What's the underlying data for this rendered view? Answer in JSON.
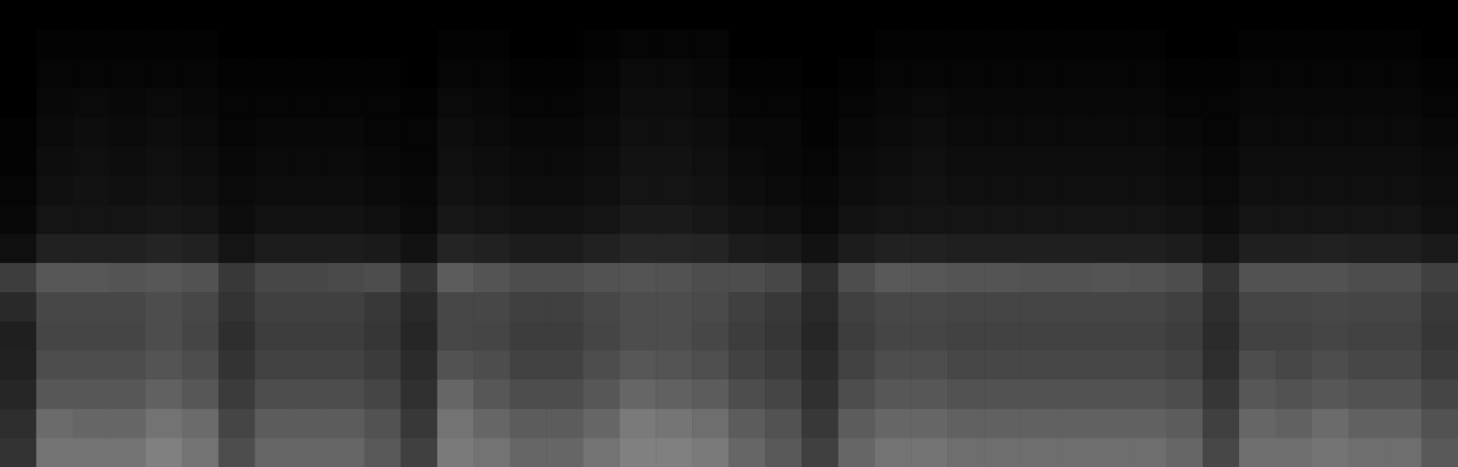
{
  "chart_data": {
    "type": "heatmap",
    "x": [
      0,
      1,
      2,
      3,
      4,
      5,
      6,
      7,
      8,
      9,
      10,
      11,
      12,
      13,
      14,
      15,
      16,
      17,
      18,
      19,
      20,
      21,
      22,
      23,
      24,
      25,
      26,
      27,
      28,
      29,
      30,
      31,
      32,
      33,
      34,
      35,
      36,
      37,
      38,
      39
    ],
    "y": [
      0,
      1,
      2,
      3,
      4,
      5,
      6,
      7,
      8,
      9,
      10,
      11,
      12,
      13,
      14,
      15
    ],
    "zlim": [
      0,
      1
    ],
    "tick_labels": false,
    "grid": false,
    "cells": [
      [
        0.2,
        0.45,
        0.45,
        0.45,
        0.5,
        0.45,
        0.3,
        0.4,
        0.4,
        0.4,
        0.35,
        0.25,
        0.48,
        0.45,
        0.4,
        0.4,
        0.45,
        0.5,
        0.5,
        0.48,
        0.4,
        0.35,
        0.25,
        0.4,
        0.45,
        0.45,
        0.43,
        0.43,
        0.43,
        0.43,
        0.43,
        0.43,
        0.4,
        0.28,
        0.43,
        0.43,
        0.45,
        0.43,
        0.43,
        0.35
      ],
      [
        0.18,
        0.42,
        0.4,
        0.4,
        0.45,
        0.42,
        0.27,
        0.36,
        0.36,
        0.36,
        0.32,
        0.22,
        0.45,
        0.4,
        0.36,
        0.36,
        0.4,
        0.48,
        0.46,
        0.43,
        0.36,
        0.32,
        0.22,
        0.36,
        0.4,
        0.4,
        0.38,
        0.38,
        0.38,
        0.38,
        0.38,
        0.38,
        0.36,
        0.25,
        0.4,
        0.38,
        0.42,
        0.38,
        0.38,
        0.32
      ],
      [
        0.15,
        0.34,
        0.34,
        0.34,
        0.38,
        0.34,
        0.23,
        0.3,
        0.3,
        0.3,
        0.27,
        0.19,
        0.4,
        0.34,
        0.3,
        0.3,
        0.34,
        0.4,
        0.38,
        0.36,
        0.3,
        0.27,
        0.19,
        0.3,
        0.34,
        0.34,
        0.32,
        0.32,
        0.32,
        0.32,
        0.32,
        0.32,
        0.3,
        0.21,
        0.34,
        0.32,
        0.34,
        0.32,
        0.32,
        0.27
      ],
      [
        0.13,
        0.3,
        0.3,
        0.3,
        0.33,
        0.3,
        0.2,
        0.26,
        0.26,
        0.26,
        0.23,
        0.17,
        0.32,
        0.3,
        0.26,
        0.26,
        0.3,
        0.34,
        0.33,
        0.31,
        0.26,
        0.23,
        0.17,
        0.26,
        0.3,
        0.3,
        0.28,
        0.28,
        0.28,
        0.28,
        0.28,
        0.28,
        0.26,
        0.18,
        0.3,
        0.28,
        0.3,
        0.28,
        0.28,
        0.23
      ],
      [
        0.12,
        0.27,
        0.27,
        0.27,
        0.3,
        0.27,
        0.18,
        0.24,
        0.24,
        0.24,
        0.21,
        0.15,
        0.28,
        0.27,
        0.24,
        0.24,
        0.27,
        0.3,
        0.3,
        0.28,
        0.24,
        0.21,
        0.15,
        0.24,
        0.27,
        0.27,
        0.26,
        0.26,
        0.26,
        0.26,
        0.26,
        0.26,
        0.24,
        0.17,
        0.26,
        0.26,
        0.27,
        0.26,
        0.26,
        0.21
      ],
      [
        0.16,
        0.28,
        0.28,
        0.28,
        0.3,
        0.28,
        0.2,
        0.25,
        0.25,
        0.25,
        0.22,
        0.16,
        0.28,
        0.28,
        0.25,
        0.25,
        0.28,
        0.3,
        0.3,
        0.29,
        0.25,
        0.22,
        0.16,
        0.25,
        0.28,
        0.28,
        0.27,
        0.27,
        0.27,
        0.27,
        0.27,
        0.27,
        0.25,
        0.18,
        0.27,
        0.27,
        0.28,
        0.27,
        0.27,
        0.22
      ],
      [
        0.24,
        0.34,
        0.34,
        0.33,
        0.34,
        0.32,
        0.22,
        0.28,
        0.28,
        0.29,
        0.3,
        0.2,
        0.36,
        0.33,
        0.3,
        0.3,
        0.32,
        0.33,
        0.32,
        0.3,
        0.3,
        0.28,
        0.18,
        0.3,
        0.35,
        0.34,
        0.33,
        0.33,
        0.32,
        0.32,
        0.33,
        0.32,
        0.3,
        0.2,
        0.32,
        0.32,
        0.32,
        0.3,
        0.3,
        0.25
      ],
      [
        0.06,
        0.13,
        0.13,
        0.13,
        0.14,
        0.13,
        0.08,
        0.11,
        0.11,
        0.11,
        0.1,
        0.07,
        0.14,
        0.13,
        0.11,
        0.11,
        0.13,
        0.15,
        0.15,
        0.14,
        0.11,
        0.1,
        0.07,
        0.11,
        0.13,
        0.13,
        0.12,
        0.12,
        0.12,
        0.12,
        0.12,
        0.12,
        0.11,
        0.08,
        0.12,
        0.12,
        0.13,
        0.12,
        0.12,
        0.1
      ],
      [
        0.03,
        0.08,
        0.08,
        0.08,
        0.09,
        0.08,
        0.05,
        0.07,
        0.07,
        0.07,
        0.06,
        0.04,
        0.09,
        0.08,
        0.07,
        0.07,
        0.08,
        0.1,
        0.1,
        0.09,
        0.07,
        0.06,
        0.04,
        0.07,
        0.08,
        0.08,
        0.08,
        0.08,
        0.08,
        0.08,
        0.08,
        0.08,
        0.07,
        0.05,
        0.08,
        0.08,
        0.08,
        0.08,
        0.08,
        0.06
      ],
      [
        0.02,
        0.06,
        0.07,
        0.06,
        0.07,
        0.06,
        0.04,
        0.05,
        0.05,
        0.05,
        0.04,
        0.03,
        0.07,
        0.06,
        0.05,
        0.05,
        0.06,
        0.08,
        0.08,
        0.07,
        0.05,
        0.04,
        0.03,
        0.05,
        0.06,
        0.07,
        0.06,
        0.06,
        0.06,
        0.06,
        0.06,
        0.06,
        0.05,
        0.04,
        0.06,
        0.06,
        0.06,
        0.06,
        0.06,
        0.05
      ],
      [
        0.01,
        0.05,
        0.06,
        0.05,
        0.06,
        0.05,
        0.03,
        0.04,
        0.04,
        0.04,
        0.03,
        0.02,
        0.06,
        0.05,
        0.04,
        0.04,
        0.05,
        0.07,
        0.07,
        0.06,
        0.04,
        0.03,
        0.02,
        0.04,
        0.05,
        0.06,
        0.05,
        0.05,
        0.05,
        0.05,
        0.05,
        0.05,
        0.04,
        0.03,
        0.05,
        0.05,
        0.05,
        0.05,
        0.05,
        0.04
      ],
      [
        0.01,
        0.04,
        0.05,
        0.04,
        0.05,
        0.04,
        0.02,
        0.03,
        0.03,
        0.03,
        0.02,
        0.02,
        0.05,
        0.04,
        0.03,
        0.03,
        0.04,
        0.06,
        0.06,
        0.05,
        0.03,
        0.03,
        0.01,
        0.03,
        0.04,
        0.05,
        0.04,
        0.04,
        0.04,
        0.04,
        0.04,
        0.04,
        0.03,
        0.02,
        0.04,
        0.04,
        0.04,
        0.04,
        0.04,
        0.03
      ],
      [
        0,
        0.03,
        0.04,
        0.03,
        0.04,
        0.03,
        0.02,
        0.02,
        0.02,
        0.02,
        0.02,
        0.01,
        0.04,
        0.03,
        0.02,
        0.02,
        0.03,
        0.05,
        0.05,
        0.04,
        0.02,
        0.02,
        0.01,
        0.02,
        0.03,
        0.04,
        0.03,
        0.03,
        0.03,
        0.03,
        0.03,
        0.03,
        0.02,
        0.02,
        0.03,
        0.03,
        0.03,
        0.03,
        0.03,
        0.02
      ],
      [
        0,
        0.02,
        0.02,
        0.02,
        0.02,
        0.02,
        0.01,
        0.01,
        0.01,
        0.01,
        0.01,
        0,
        0.02,
        0.02,
        0.01,
        0.01,
        0.02,
        0.04,
        0.04,
        0.03,
        0.01,
        0.01,
        0,
        0.01,
        0.02,
        0.02,
        0.02,
        0.02,
        0.02,
        0.02,
        0.02,
        0.02,
        0.01,
        0.01,
        0.02,
        0.02,
        0.02,
        0.02,
        0.02,
        0.01
      ],
      [
        0,
        0.01,
        0.01,
        0.01,
        0.01,
        0.01,
        0,
        0,
        0,
        0,
        0,
        0,
        0.01,
        0.01,
        0,
        0,
        0.01,
        0.02,
        0.02,
        0.02,
        0,
        0,
        0,
        0,
        0.01,
        0.01,
        0.01,
        0.01,
        0.01,
        0.01,
        0.01,
        0.01,
        0,
        0,
        0.01,
        0.01,
        0.01,
        0.01,
        0.01,
        0
      ],
      [
        0,
        0,
        0,
        0,
        0,
        0,
        0,
        0,
        0,
        0,
        0,
        0,
        0,
        0,
        0,
        0,
        0,
        0,
        0,
        0,
        0,
        0,
        0,
        0,
        0,
        0,
        0,
        0,
        0,
        0,
        0,
        0,
        0,
        0,
        0,
        0,
        0,
        0,
        0,
        0
      ]
    ]
  }
}
